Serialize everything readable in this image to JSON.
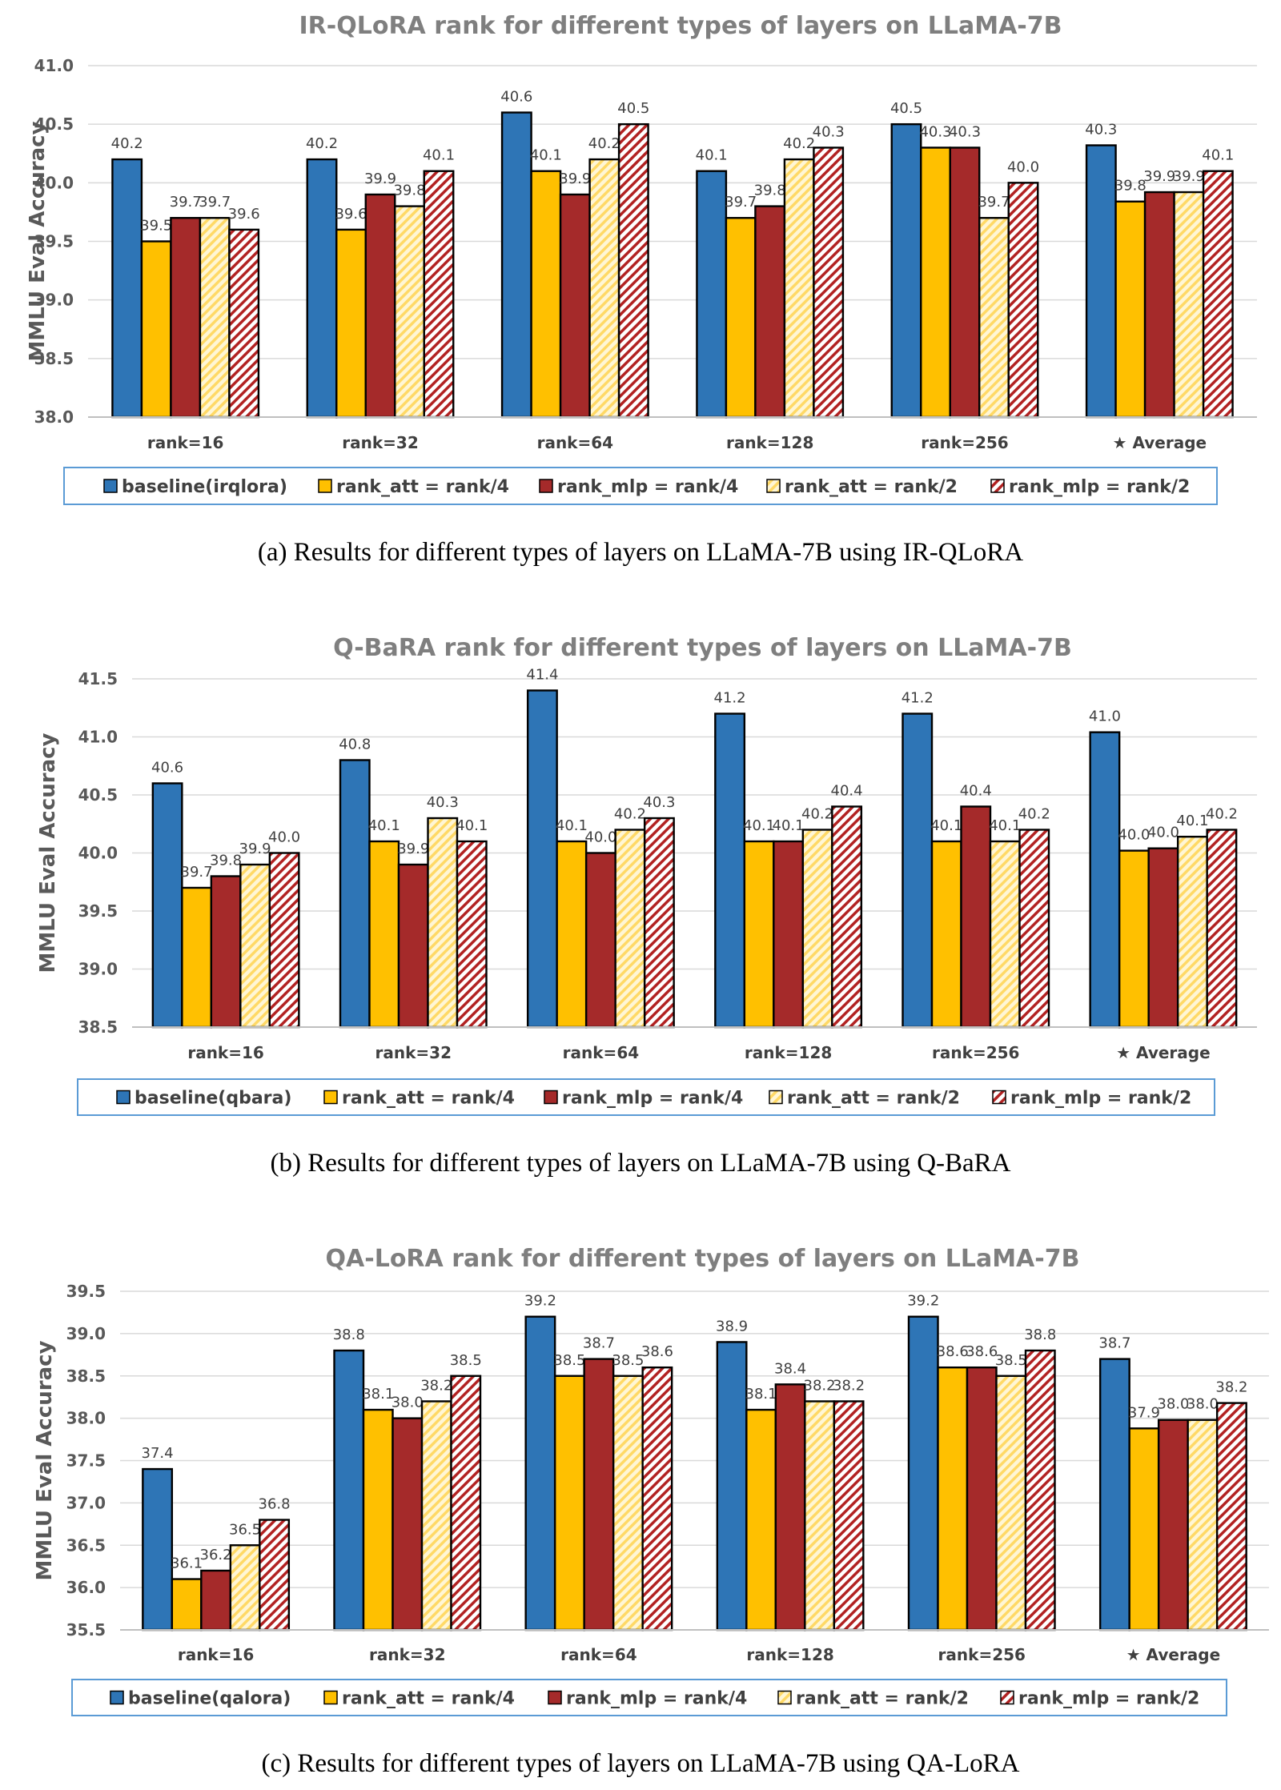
{
  "colors": {
    "baseline": "#2e75b6",
    "rank_att_4": "#ffc000",
    "rank_mlp_4": "#a52a2a",
    "rank_att_2": "#ffe699",
    "rank_mlp_2": "#c00000",
    "title_gray": "#7f7f7f",
    "legend_border": "#5b9bd5"
  },
  "chart_data": [
    {
      "type": "bar",
      "title": "IR-QLoRA rank for different types of layers on LLaMA-7B",
      "xlabel": "",
      "ylabel": "MMLU Eval Accuracy",
      "ylim": [
        38.0,
        41.0
      ],
      "yticks": [
        "41.0",
        "40.5",
        "40.0",
        "39.5",
        "39.0",
        "38.5",
        "38.0"
      ],
      "categories": [
        "rank=16",
        "rank=32",
        "rank=64",
        "rank=128",
        "rank=256",
        "★ Average"
      ],
      "series": [
        {
          "name": "baseline(irqlora)",
          "style": "baseline",
          "values": [
            40.2,
            40.2,
            40.6,
            40.1,
            40.5,
            40.32
          ],
          "labels": [
            "40.2",
            "40.2",
            "40.6",
            "40.1",
            "40.5",
            "40.3"
          ]
        },
        {
          "name": "rank_att = rank/4",
          "style": "att4",
          "values": [
            39.5,
            39.6,
            40.1,
            39.7,
            40.3,
            39.84
          ],
          "labels": [
            "39.5",
            "39.6",
            "40.1",
            "39.7",
            "40.3",
            "39.8"
          ]
        },
        {
          "name": "rank_mlp = rank/4",
          "style": "mlp4",
          "values": [
            39.7,
            39.9,
            39.9,
            39.8,
            40.3,
            39.92
          ],
          "labels": [
            "39.7",
            "39.9",
            "39.9",
            "39.8",
            "40.3",
            "39.9"
          ]
        },
        {
          "name": "rank_att = rank/2",
          "style": "att2",
          "values": [
            39.7,
            39.8,
            40.2,
            40.2,
            39.7,
            39.92
          ],
          "labels": [
            "39.7",
            "39.8",
            "40.2",
            "40.2",
            "39.7",
            "39.9"
          ]
        },
        {
          "name": "rank_mlp = rank/2",
          "style": "mlp2",
          "values": [
            39.6,
            40.1,
            40.5,
            40.3,
            40.0,
            40.1
          ],
          "labels": [
            "39.6",
            "40.1",
            "40.5",
            "40.3",
            "40.0",
            "40.1"
          ]
        }
      ],
      "legend": [
        "baseline(irqlora)",
        "rank_att = rank/4",
        "rank_mlp = rank/4",
        "rank_att = rank/2",
        "rank_mlp = rank/2"
      ],
      "caption": "(a)  Results for different types of layers on LLaMA-7B using IR-QLoRA"
    },
    {
      "type": "bar",
      "title": "Q-BaRA rank for different types of layers on LLaMA-7B",
      "xlabel": "",
      "ylabel": "MMLU Eval Accuracy",
      "ylim": [
        38.5,
        41.5
      ],
      "yticks": [
        "41.5",
        "41.0",
        "40.5",
        "40.0",
        "39.5",
        "39.0",
        "38.5"
      ],
      "categories": [
        "rank=16",
        "rank=32",
        "rank=64",
        "rank=128",
        "rank=256",
        "★ Average"
      ],
      "series": [
        {
          "name": "baseline(qbara)",
          "style": "baseline",
          "values": [
            40.6,
            40.8,
            41.4,
            41.2,
            41.2,
            41.04
          ],
          "labels": [
            "40.6",
            "40.8",
            "41.4",
            "41.2",
            "41.2",
            "41.0"
          ]
        },
        {
          "name": "rank_att = rank/4",
          "style": "att4",
          "values": [
            39.7,
            40.1,
            40.1,
            40.1,
            40.1,
            40.02
          ],
          "labels": [
            "39.7",
            "40.1",
            "40.1",
            "40.1",
            "40.1",
            "40.0"
          ]
        },
        {
          "name": "rank_mlp = rank/4",
          "style": "mlp4",
          "values": [
            39.8,
            39.9,
            40.0,
            40.1,
            40.4,
            40.04
          ],
          "labels": [
            "39.8",
            "39.9",
            "40.0",
            "40.1",
            "40.4",
            "40.0"
          ]
        },
        {
          "name": "rank_att = rank/2",
          "style": "att2",
          "values": [
            39.9,
            40.3,
            40.2,
            40.2,
            40.1,
            40.14
          ],
          "labels": [
            "39.9",
            "40.3",
            "40.2",
            "40.2",
            "40.1",
            "40.1"
          ]
        },
        {
          "name": "rank_mlp = rank/2",
          "style": "mlp2",
          "values": [
            40.0,
            40.1,
            40.3,
            40.4,
            40.2,
            40.2
          ],
          "labels": [
            "40.0",
            "40.1",
            "40.3",
            "40.4",
            "40.2",
            "40.2"
          ]
        }
      ],
      "legend": [
        "baseline(qbara)",
        "rank_att = rank/4",
        "rank_mlp = rank/4",
        "rank_att = rank/2",
        "rank_mlp = rank/2"
      ],
      "caption": "(b)  Results for different types of layers on LLaMA-7B using Q-BaRA"
    },
    {
      "type": "bar",
      "title": "QA-LoRA rank for different types of layers on LLaMA-7B",
      "xlabel": "",
      "ylabel": "MMLU Eval Accuracy",
      "ylim": [
        35.5,
        39.5
      ],
      "yticks": [
        "39.5",
        "39.0",
        "38.5",
        "38.0",
        "37.5",
        "37.0",
        "36.5",
        "36.0",
        "35.5"
      ],
      "categories": [
        "rank=16",
        "rank=32",
        "rank=64",
        "rank=128",
        "rank=256",
        "★ Average"
      ],
      "series": [
        {
          "name": "baseline(qalora)",
          "style": "baseline",
          "values": [
            37.4,
            38.8,
            39.2,
            38.9,
            39.2,
            38.7
          ],
          "labels": [
            "37.4",
            "38.8",
            "39.2",
            "38.9",
            "39.2",
            "38.7"
          ]
        },
        {
          "name": "rank_att = rank/4",
          "style": "att4",
          "values": [
            36.1,
            38.1,
            38.5,
            38.1,
            38.6,
            37.88
          ],
          "labels": [
            "36.1",
            "38.1",
            "38.5",
            "38.1",
            "38.6",
            "37.9"
          ]
        },
        {
          "name": "rank_mlp = rank/4",
          "style": "mlp4",
          "values": [
            36.2,
            38.0,
            38.7,
            38.4,
            38.6,
            37.98
          ],
          "labels": [
            "36.2",
            "38.0",
            "38.7",
            "38.4",
            "38.6",
            "38.0"
          ]
        },
        {
          "name": "rank_att = rank/2",
          "style": "att2",
          "values": [
            36.5,
            38.2,
            38.5,
            38.2,
            38.5,
            37.98
          ],
          "labels": [
            "36.5",
            "38.2",
            "38.5",
            "38.2",
            "38.5",
            "38.0"
          ]
        },
        {
          "name": "rank_mlp = rank/2",
          "style": "mlp2",
          "values": [
            36.8,
            38.5,
            38.6,
            38.2,
            38.8,
            38.18
          ],
          "labels": [
            "36.8",
            "38.5",
            "38.6",
            "38.2",
            "38.8",
            "38.2"
          ]
        }
      ],
      "legend": [
        "baseline(qalora)",
        "rank_att = rank/4",
        "rank_mlp = rank/4",
        "rank_att = rank/2",
        "rank_mlp = rank/2"
      ],
      "caption": "(c)  Results for different types of layers on LLaMA-7B using QA-LoRA"
    }
  ]
}
